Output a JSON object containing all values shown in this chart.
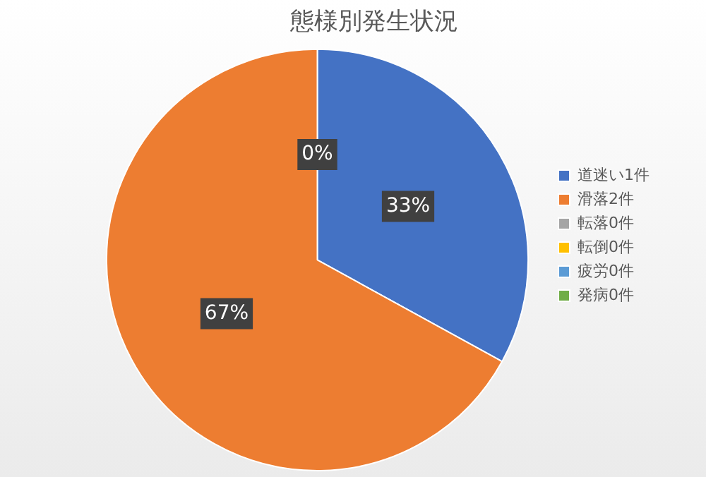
{
  "chart_data": {
    "type": "pie",
    "title": "態様別発生状況",
    "categories": [
      "道迷い1件",
      "滑落2件",
      "転落0件",
      "転倒0件",
      "疲労0件",
      "発病0件"
    ],
    "values": [
      33,
      67,
      0,
      0,
      0,
      0
    ],
    "colors": [
      "#4472c4",
      "#ed7d31",
      "#a5a5a5",
      "#ffc000",
      "#5b9bd5",
      "#70ad47"
    ],
    "value_labels": [
      "33%",
      "67%",
      "0%",
      null,
      null,
      null
    ],
    "legend": "right"
  }
}
